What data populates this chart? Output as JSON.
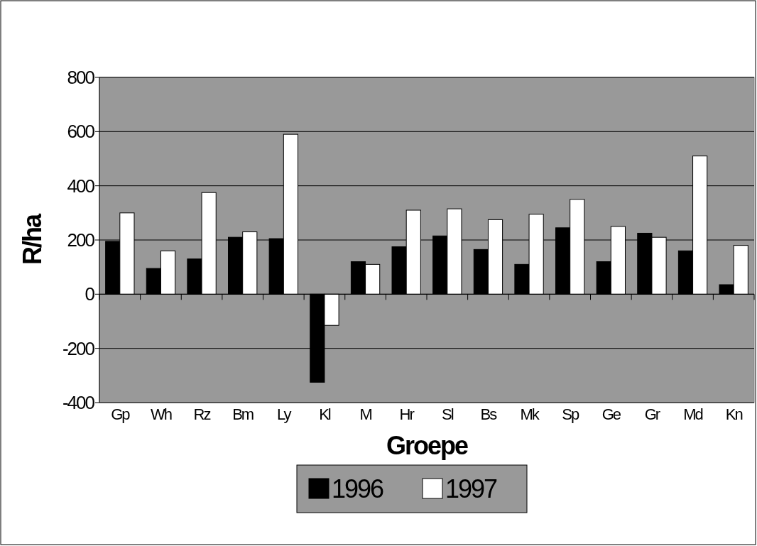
{
  "chart_data": {
    "type": "bar",
    "xlabel": "Groepe",
    "ylabel": "R/ha",
    "categories": [
      "Gp",
      "Wh",
      "Rz",
      "Bm",
      "Ly",
      "Kl",
      "M",
      "Hr",
      "Sl",
      "Bs",
      "Mk",
      "Sp",
      "Ge",
      "Gr",
      "Md",
      "Kn"
    ],
    "series": [
      {
        "name": "1996",
        "color": "#000000",
        "values": [
          195,
          95,
          130,
          210,
          205,
          -325,
          120,
          175,
          215,
          165,
          110,
          245,
          120,
          225,
          160,
          35
        ]
      },
      {
        "name": "1997",
        "color": "#ffffff",
        "values": [
          300,
          160,
          375,
          230,
          590,
          -115,
          110,
          310,
          315,
          275,
          295,
          350,
          250,
          210,
          510,
          180
        ]
      }
    ],
    "ylim": [
      -400,
      800
    ],
    "yticks": [
      -400,
      -200,
      0,
      200,
      400,
      600,
      800
    ],
    "grid": "y",
    "legend": "bottom"
  }
}
